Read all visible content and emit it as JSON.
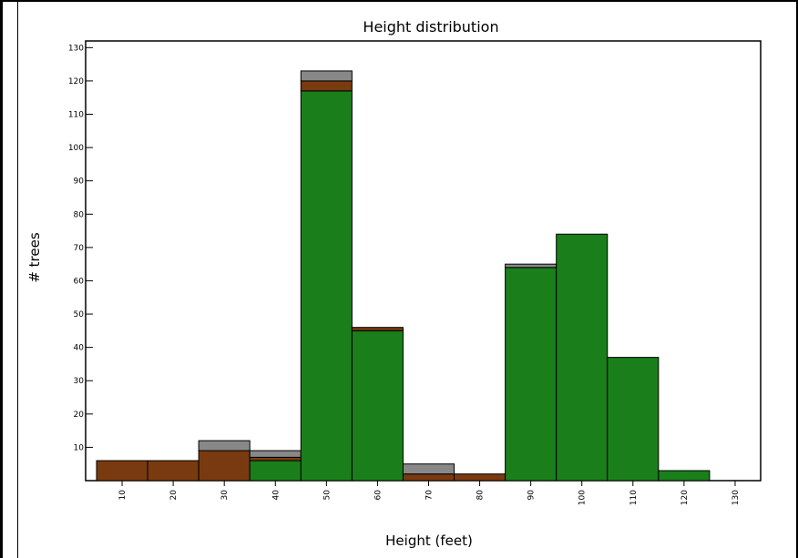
{
  "chart_data": {
    "type": "bar",
    "title": "Height distribution",
    "xlabel": "Height (feet)",
    "ylabel": "# trees",
    "xlim": [
      5,
      135
    ],
    "ylim": [
      0,
      132
    ],
    "x_ticks": [
      10,
      20,
      30,
      40,
      50,
      60,
      70,
      80,
      90,
      100,
      110,
      120,
      130
    ],
    "y_ticks": [
      10,
      20,
      30,
      40,
      50,
      60,
      70,
      80,
      90,
      100,
      110,
      120,
      130
    ],
    "bin_width": 10,
    "categories": [
      "10",
      "20",
      "30",
      "40",
      "50",
      "60",
      "70",
      "80",
      "90",
      "100",
      "110",
      "120"
    ],
    "series": [
      {
        "color": "#1a7f1a",
        "values": [
          0,
          0,
          0,
          6,
          117,
          45,
          0,
          0,
          64,
          74,
          37,
          3
        ]
      },
      {
        "color": "#7a3a10",
        "values": [
          6,
          6,
          9,
          1,
          3,
          1,
          2,
          2,
          0,
          0,
          0,
          0
        ]
      },
      {
        "color": "#888888",
        "values": [
          0,
          0,
          3,
          2,
          3,
          0,
          3,
          0,
          1,
          0,
          0,
          0
        ]
      }
    ],
    "grid": false,
    "legend": "none"
  }
}
